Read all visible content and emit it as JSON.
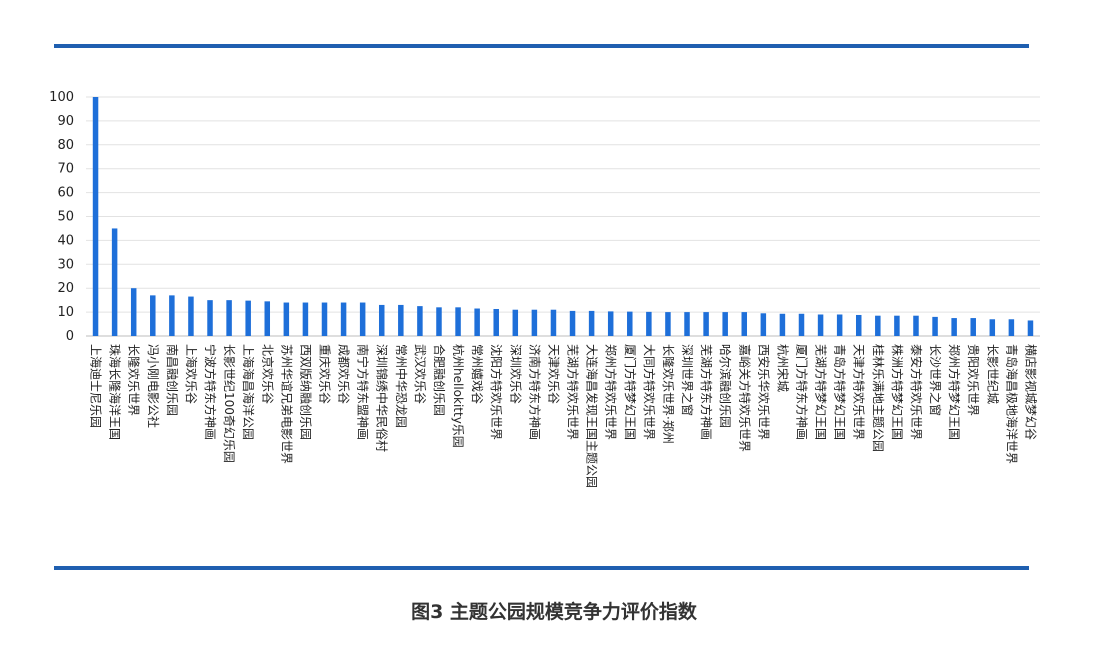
{
  "caption": "图3 主题公园规模竞争力评价指数",
  "colors": {
    "bar": "#1e6fd9",
    "rule": "#1f5fb0",
    "grid": "#e2e2e2"
  },
  "chart_data": {
    "type": "bar",
    "title": "",
    "xlabel": "",
    "ylabel": "",
    "ylim": [
      0,
      100
    ],
    "yticks": [
      0,
      10,
      20,
      30,
      40,
      50,
      60,
      70,
      80,
      90,
      100
    ],
    "grid": true,
    "categories": [
      "上海迪士尼乐园",
      "珠海长隆海洋王国",
      "长隆欢乐世界",
      "冯小刚电影公社",
      "南昌融创乐园",
      "上海欢乐谷",
      "宁波方特东方神画",
      "长影世纪100奇幻乐园",
      "上海海昌海洋公园",
      "北京欢乐谷",
      "苏州华谊兄弟电影世界",
      "西双版纳融创乐园",
      "重庆欢乐谷",
      "成都欢乐谷",
      "南宁方特东盟神画",
      "深圳锦绣中华民俗村",
      "常州中华恐龙园",
      "武汉欢乐谷",
      "合肥融创乐园",
      "杭州hellokitty乐园",
      "常州嬉戏谷",
      "沈阳方特欢乐世界",
      "深圳欢乐谷",
      "济南方特东方神画",
      "天津欢乐谷",
      "芜湖方特欢乐世界",
      "大连海昌发现王国主题公园",
      "郑州方特欢乐世界",
      "厦门方特梦幻王国",
      "大同方特欢乐世界",
      "长隆欢乐世界·郑州",
      "深圳世界之窗",
      "芜湖方特东方神画",
      "哈尔滨融创乐园",
      "嘉峪关方特欢乐世界",
      "西安乐华欢乐世界",
      "杭州宋城",
      "厦门方特东方神画",
      "芜湖方特梦幻王国",
      "青岛方特梦幻王国",
      "天津方特欢乐世界",
      "桂林乐满地主题公园",
      "株洲方特梦幻王国",
      "泰安方特欢乐世界",
      "长沙世界之窗",
      "郑州方特梦幻王国",
      "贵阳欢乐世界",
      "长影世纪城",
      "青岛海昌极地海洋世界",
      "横店影视城梦幻谷"
    ],
    "values": [
      100,
      45,
      20,
      17,
      17,
      16.5,
      15,
      15,
      14.8,
      14.5,
      14,
      14,
      14,
      14,
      14,
      13,
      13,
      12.5,
      12,
      12,
      11.5,
      11.3,
      11,
      11,
      11,
      10.5,
      10.5,
      10.3,
      10.2,
      10.1,
      10,
      10,
      10,
      10,
      10,
      9.5,
      9.3,
      9.3,
      9,
      9,
      8.8,
      8.5,
      8.5,
      8.5,
      8,
      7.5,
      7.5,
      7,
      7,
      6.5
    ]
  }
}
